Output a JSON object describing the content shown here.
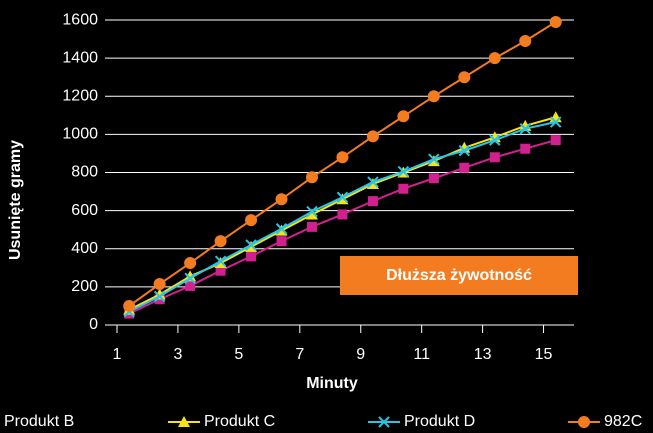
{
  "chart_data": {
    "type": "line",
    "y_label": "Usunięte gramy",
    "x_label": "Minuty",
    "annotation": "Dłuższa żywotność",
    "x": [
      1.4,
      2.4,
      3.4,
      4.4,
      5.4,
      6.4,
      7.4,
      8.4,
      9.4,
      10.4,
      11.4,
      12.4,
      13.4,
      14.4,
      15.4
    ],
    "series": [
      {
        "name": "Produkt B",
        "color": "#d0218f",
        "marker": "square",
        "values": [
          60,
          135,
          205,
          285,
          360,
          440,
          515,
          580,
          650,
          715,
          770,
          825,
          880,
          925,
          970
        ]
      },
      {
        "name": "Produkt C",
        "color": "#f5e21a",
        "marker": "triangle",
        "values": [
          80,
          160,
          255,
          325,
          410,
          495,
          580,
          660,
          740,
          800,
          860,
          930,
          985,
          1045,
          1090
        ]
      },
      {
        "name": "Produkt D",
        "color": "#29c5e6",
        "marker": "x",
        "values": [
          70,
          150,
          245,
          335,
          420,
          505,
          595,
          670,
          750,
          805,
          870,
          915,
          970,
          1030,
          1065
        ]
      },
      {
        "name": "982C",
        "color": "#f47c20",
        "marker": "circle",
        "values": [
          100,
          215,
          325,
          440,
          550,
          660,
          775,
          880,
          990,
          1095,
          1200,
          1300,
          1400,
          1490,
          1590
        ]
      }
    ],
    "xlim": [
      1,
      16
    ],
    "xticks": [
      1,
      3,
      5,
      7,
      9,
      11,
      13,
      15
    ],
    "ylim": [
      0,
      1700
    ],
    "yticks": [
      0,
      200,
      400,
      600,
      800,
      1000,
      1200,
      1400,
      1600
    ],
    "grid": true
  }
}
